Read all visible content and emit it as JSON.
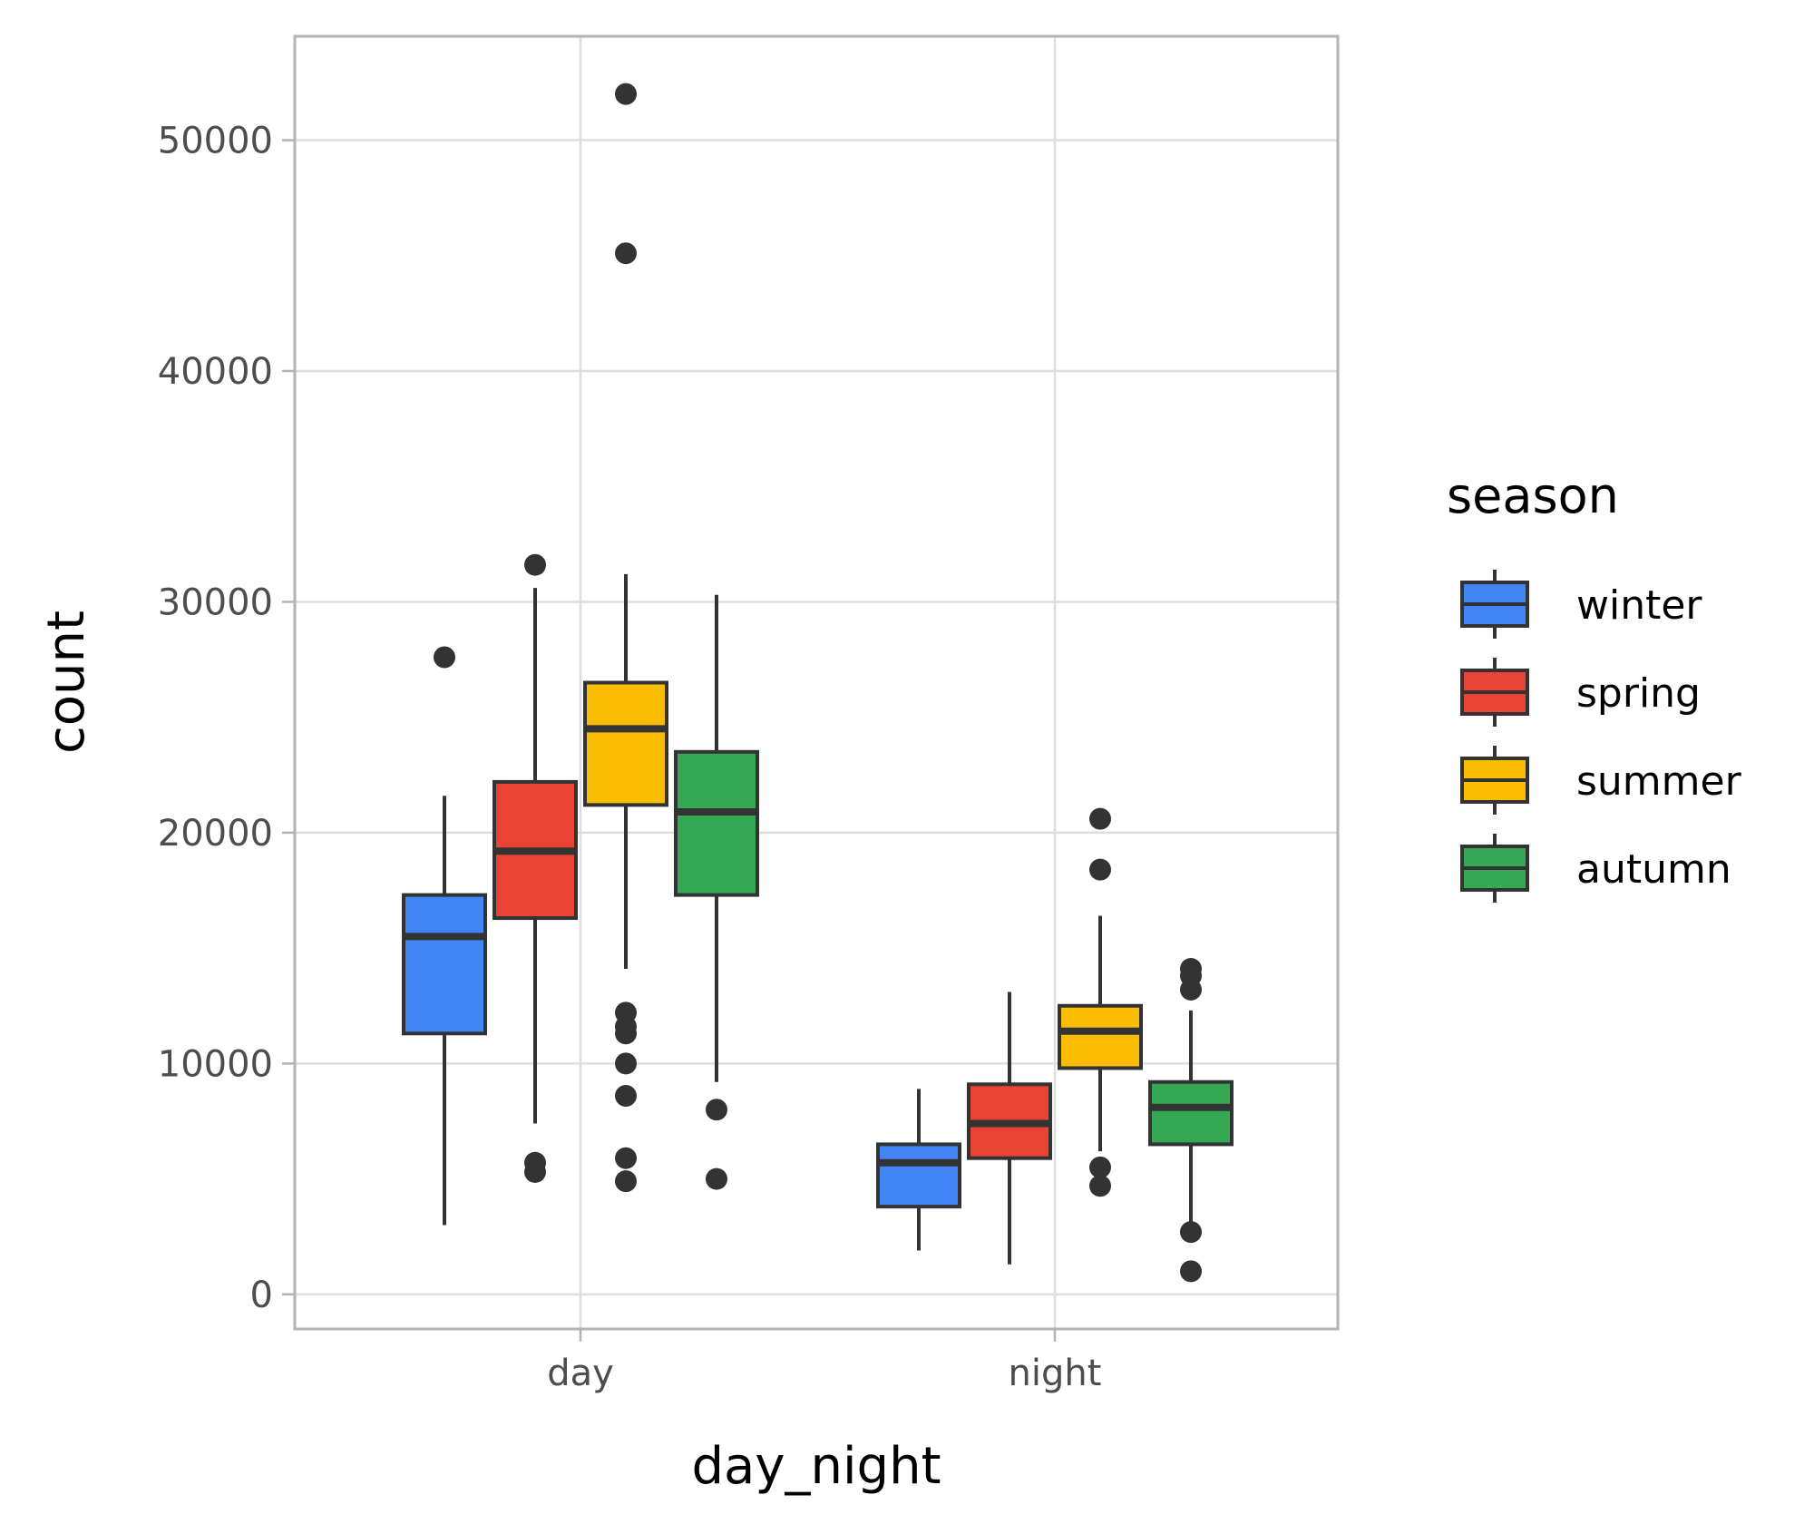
{
  "chart_data": {
    "type": "box",
    "xlabel": "day_night",
    "ylabel": "count",
    "categories": [
      "day",
      "night"
    ],
    "ylim": [
      -1500,
      54500
    ],
    "yticks": [
      0,
      10000,
      20000,
      30000,
      40000,
      50000
    ],
    "ytick_labels": [
      "0",
      "10000",
      "20000",
      "30000",
      "40000",
      "50000"
    ],
    "grid": true,
    "legend": {
      "title": "season",
      "position": "right"
    },
    "series": [
      {
        "name": "winter",
        "color": "#4285F4",
        "boxes": [
          {
            "category": "day",
            "whisker_low": 3000,
            "q1": 11300,
            "median": 15500,
            "q3": 17300,
            "whisker_high": 21600,
            "outliers": [
              27600
            ]
          },
          {
            "category": "night",
            "whisker_low": 1900,
            "q1": 3800,
            "median": 5700,
            "q3": 6500,
            "whisker_high": 8900,
            "outliers": []
          }
        ]
      },
      {
        "name": "spring",
        "color": "#EA4335",
        "boxes": [
          {
            "category": "day",
            "whisker_low": 7400,
            "q1": 16300,
            "median": 19200,
            "q3": 22200,
            "whisker_high": 30600,
            "outliers": [
              31600,
              5700,
              5300
            ]
          },
          {
            "category": "night",
            "whisker_low": 1300,
            "q1": 5900,
            "median": 7400,
            "q3": 9100,
            "whisker_high": 13100,
            "outliers": []
          }
        ]
      },
      {
        "name": "summer",
        "color": "#FBBC04",
        "boxes": [
          {
            "category": "day",
            "whisker_low": 14100,
            "q1": 21200,
            "median": 24500,
            "q3": 26500,
            "whisker_high": 31200,
            "outliers": [
              52000,
              45100,
              12200,
              11600,
              11300,
              10000,
              8600,
              5900,
              4900
            ]
          },
          {
            "category": "night",
            "whisker_low": 6200,
            "q1": 9800,
            "median": 11400,
            "q3": 12500,
            "whisker_high": 16400,
            "outliers": [
              20600,
              18400,
              5500,
              4700
            ]
          }
        ]
      },
      {
        "name": "autumn",
        "color": "#34A853",
        "boxes": [
          {
            "category": "day",
            "whisker_low": 9200,
            "q1": 17300,
            "median": 20900,
            "q3": 23500,
            "whisker_high": 30300,
            "outliers": [
              8000,
              5000
            ]
          },
          {
            "category": "night",
            "whisker_low": 3100,
            "q1": 6500,
            "median": 8100,
            "q3": 9200,
            "whisker_high": 12300,
            "outliers": [
              14100,
              13800,
              13200,
              2700,
              1000
            ]
          }
        ]
      }
    ]
  }
}
